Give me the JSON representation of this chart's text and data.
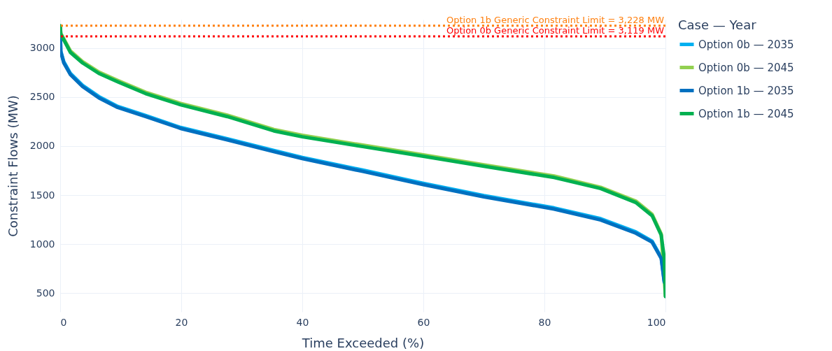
{
  "chart_data": {
    "type": "line",
    "xlabel": "Time Exceeded (%)",
    "ylabel": "Constraint Flows (MW)",
    "legend_title": "Case — Year",
    "xlim": [
      0,
      100
    ],
    "ylim": [
      310,
      3290
    ],
    "xticks": [
      0,
      20,
      40,
      60,
      80,
      100
    ],
    "yticks": [
      500,
      1000,
      1500,
      2000,
      2500,
      3000
    ],
    "grid": true,
    "legend": "top right",
    "line_style": "solid",
    "marker": "none",
    "x": [
      0,
      0.1,
      0.6,
      1.7,
      3.7,
      6.4,
      9.5,
      14.1,
      19.9,
      27.6,
      35.3,
      40,
      50,
      60,
      70,
      81.6,
      89.3,
      95.1,
      97.8,
      99.3,
      99.8,
      100
    ],
    "series": [
      {
        "name": "Option 0b — 2035",
        "color": "#00b0f0",
        "values": [
          3210,
          2970,
          2860,
          2740,
          2620,
          2505,
          2405,
          2312,
          2190,
          2075,
          1955,
          1885,
          1755,
          1620,
          1495,
          1370,
          1260,
          1125,
          1030,
          865,
          625,
          810
        ]
      },
      {
        "name": "Option 0b — 2045",
        "color": "#92d050",
        "values": [
          3228,
          3150,
          3095,
          2970,
          2862,
          2755,
          2670,
          2550,
          2435,
          2315,
          2170,
          2110,
          2010,
          1910,
          1810,
          1695,
          1580,
          1440,
          1305,
          1105,
          null,
          470
        ]
      },
      {
        "name": "Option 1b — 2035",
        "color": "#0070c0",
        "values": [
          3200,
          2960,
          2848,
          2728,
          2607,
          2492,
          2394,
          2301,
          2180,
          2064,
          1944,
          1873,
          1742,
          1608,
          1483,
          1358,
          1247,
          1112,
          1020,
          856,
          614,
          800
        ]
      },
      {
        "name": "Option 1b — 2045",
        "color": "#00b050",
        "values": [
          3225,
          3140,
          3083,
          2955,
          2848,
          2741,
          2656,
          2536,
          2421,
          2301,
          2155,
          2095,
          1995,
          1896,
          1795,
          1680,
          1567,
          1425,
          1290,
          1092,
          856,
          465
        ]
      }
    ],
    "ref_lines": [
      {
        "axis": "y",
        "value": 3228,
        "label": "Option 1b Generic Constraint Limit = 3,228 MW",
        "color": "#ff7f0e",
        "line_style": "dotted"
      },
      {
        "axis": "y",
        "value": 3119,
        "label": "Option 0b Generic Constraint Limit = 3,119 MW",
        "color": "#ff0000",
        "line_style": "dotted"
      }
    ]
  }
}
